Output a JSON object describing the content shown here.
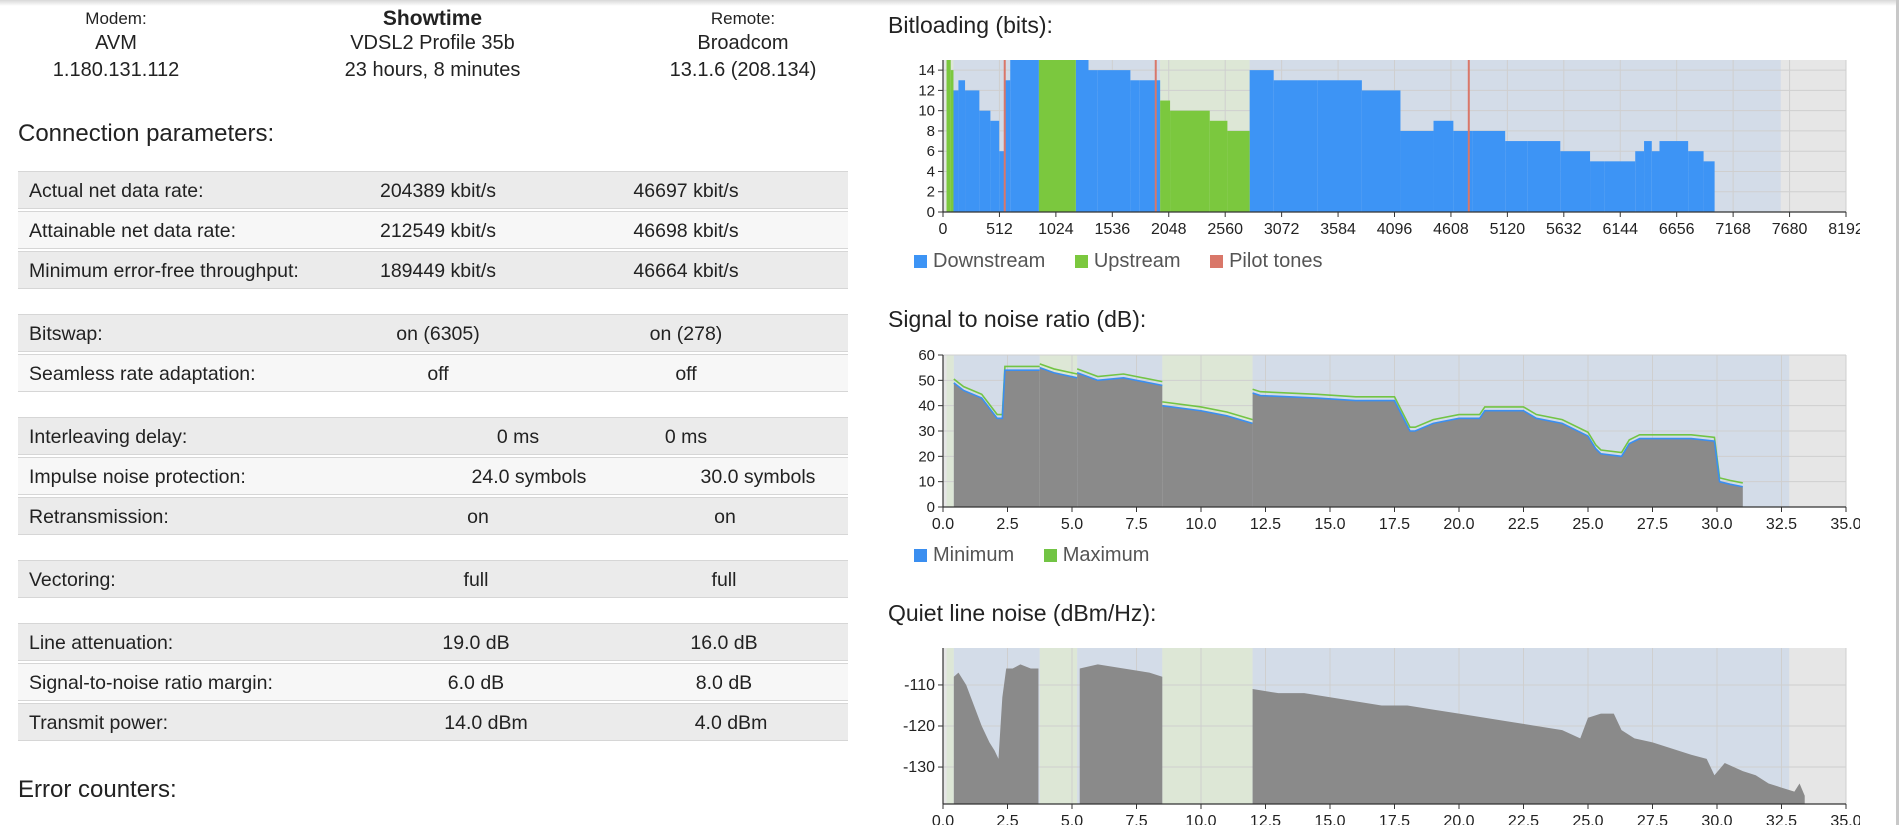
{
  "header": {
    "modem_label": "Modem:",
    "modem_vendor": "AVM",
    "modem_version": "1.180.131.112",
    "state": "Showtime",
    "profile": "VDSL2 Profile 35b",
    "uptime": "23 hours, 8 minutes",
    "remote_label": "Remote:",
    "remote_vendor": "Broadcom",
    "remote_version": "13.1.6 (208.134)"
  },
  "sections": {
    "connection": "Connection parameters:",
    "errors": "Error counters:"
  },
  "params": [
    {
      "name": "Actual net data rate:",
      "ds": "204389 kbit/s",
      "us": "46697 kbit/s"
    },
    {
      "name": "Attainable net data rate:",
      "ds": "212549 kbit/s",
      "us": "46698 kbit/s"
    },
    {
      "name": "Minimum error-free throughput:",
      "ds": "189449 kbit/s",
      "us": "46664 kbit/s"
    },
    {
      "name": "Bitswap:",
      "ds": "on (6305)",
      "us": "on (278)"
    },
    {
      "name": "Seamless rate adaptation:",
      "ds": "off",
      "us": "off"
    },
    {
      "name": "Interleaving delay:",
      "ds": "0 ms",
      "us": "0 ms"
    },
    {
      "name": "Impulse noise protection:",
      "ds": "24.0 symbols",
      "us": "30.0 symbols"
    },
    {
      "name": "Retransmission:",
      "ds": "on",
      "us": "on"
    },
    {
      "name": "Vectoring:",
      "ds": "full",
      "us": "full"
    },
    {
      "name": "Line attenuation:",
      "ds": "19.0 dB",
      "us": "16.0 dB"
    },
    {
      "name": "Signal-to-noise ratio margin:",
      "ds": "6.0 dB",
      "us": "8.0 dB"
    },
    {
      "name": "Transmit power:",
      "ds": "14.0 dBm",
      "us": "4.0 dBm"
    }
  ],
  "colors": {
    "downstream": "#3d94f5",
    "upstream": "#7bc83e",
    "pilot": "#d97769",
    "snr_min": "#3a8ef0",
    "snr_max": "#72c444",
    "noise": "#8a8a8a",
    "band_ds": "#d3dce8",
    "band_us": "#dde7d6",
    "plot_bg": "#e6e6e6"
  },
  "chart_data": [
    {
      "type": "bar",
      "title": "Bitloading (bits):",
      "x_unit": "tone",
      "xlim": [
        0,
        8192
      ],
      "ylim": [
        0,
        15
      ],
      "xticks": [
        0,
        512,
        1024,
        1536,
        2048,
        2560,
        3072,
        3584,
        4096,
        4608,
        5120,
        5632,
        6144,
        6656,
        7168,
        7680,
        8192
      ],
      "yticks": [
        0,
        2,
        4,
        6,
        8,
        10,
        12,
        14
      ],
      "grid": true,
      "legend_position": "bottom-left",
      "legend": [
        "Downstream",
        "Upstream",
        "Pilot tones"
      ],
      "bands": [
        {
          "kind": "us",
          "from": 32,
          "to": 95
        },
        {
          "kind": "ds",
          "from": 95,
          "to": 870
        },
        {
          "kind": "us",
          "from": 870,
          "to": 1205
        },
        {
          "kind": "ds",
          "from": 1205,
          "to": 1970
        },
        {
          "kind": "us",
          "from": 1970,
          "to": 2782
        },
        {
          "kind": "ds",
          "from": 2782,
          "to": 7600
        }
      ],
      "downstream_steps": [
        [
          95,
          140,
          12
        ],
        [
          140,
          200,
          13
        ],
        [
          200,
          330,
          12
        ],
        [
          330,
          430,
          10
        ],
        [
          430,
          510,
          9
        ],
        [
          510,
          560,
          6
        ],
        [
          560,
          610,
          13
        ],
        [
          610,
          870,
          15
        ],
        [
          1205,
          1320,
          15
        ],
        [
          1320,
          1400,
          14
        ],
        [
          1400,
          1700,
          14
        ],
        [
          1700,
          1780,
          13
        ],
        [
          1780,
          1970,
          13
        ],
        [
          2782,
          3000,
          14
        ],
        [
          3000,
          3400,
          13
        ],
        [
          3400,
          3800,
          13
        ],
        [
          3800,
          4150,
          12
        ],
        [
          4150,
          4450,
          8
        ],
        [
          4450,
          4630,
          9
        ],
        [
          4630,
          4800,
          8
        ],
        [
          4800,
          5100,
          8
        ],
        [
          5100,
          5300,
          7
        ],
        [
          5300,
          5600,
          7
        ],
        [
          5600,
          5870,
          6
        ],
        [
          5870,
          6000,
          5
        ],
        [
          6000,
          6280,
          5
        ],
        [
          6280,
          6360,
          6
        ],
        [
          6360,
          6430,
          7
        ],
        [
          6430,
          6500,
          6
        ],
        [
          6500,
          6760,
          7
        ],
        [
          6760,
          6900,
          6
        ],
        [
          6900,
          7000,
          5
        ]
      ],
      "upstream_steps": [
        [
          32,
          70,
          15
        ],
        [
          70,
          95,
          14
        ],
        [
          870,
          1205,
          15
        ],
        [
          1970,
          2060,
          11
        ],
        [
          2060,
          2420,
          10
        ],
        [
          2420,
          2580,
          9
        ],
        [
          2580,
          2782,
          8
        ]
      ],
      "pilot_tones": [
        560,
        1930,
        4770
      ]
    },
    {
      "type": "line",
      "title": "Signal to noise ratio (dB):",
      "x_unit": "MHz",
      "xlim": [
        0,
        35
      ],
      "ylim": [
        0,
        60
      ],
      "xticks": [
        0.0,
        2.5,
        5.0,
        7.5,
        10.0,
        12.5,
        15.0,
        17.5,
        20.0,
        22.5,
        25.0,
        27.5,
        30.0,
        32.5,
        35.0
      ],
      "yticks": [
        0,
        10,
        20,
        30,
        40,
        50,
        60
      ],
      "grid": true,
      "legend_position": "bottom-left",
      "legend": [
        "Minimum",
        "Maximum"
      ],
      "bands": [
        {
          "kind": "us",
          "from": 0.14,
          "to": 0.42
        },
        {
          "kind": "ds",
          "from": 0.42,
          "to": 3.75
        },
        {
          "kind": "us",
          "from": 3.75,
          "to": 5.2
        },
        {
          "kind": "ds",
          "from": 5.2,
          "to": 8.5
        },
        {
          "kind": "us",
          "from": 8.5,
          "to": 12.0
        },
        {
          "kind": "ds",
          "from": 12.0,
          "to": 32.8
        }
      ],
      "segments": [
        {
          "x": [
            0.42,
            0.8,
            1.5,
            2.1,
            2.3,
            2.4,
            3.0,
            3.75
          ],
          "y": [
            49,
            46,
            43,
            35,
            35,
            54,
            54,
            54
          ]
        },
        {
          "x": [
            3.75,
            4.3,
            5.2
          ],
          "y": [
            55,
            53,
            51
          ]
        },
        {
          "x": [
            5.2,
            6.0,
            7.0,
            8.5
          ],
          "y": [
            53,
            50,
            51,
            48
          ]
        },
        {
          "x": [
            8.5,
            10.0,
            11.0,
            12.0
          ],
          "y": [
            40,
            38,
            36,
            33
          ]
        },
        {
          "x": [
            12.0,
            12.3,
            14.5,
            16.0,
            17.0,
            17.5,
            17.7,
            18.1,
            18.3,
            19.0,
            20.0,
            20.8,
            21.0,
            22.5,
            23.0,
            24.0,
            25.0,
            25.3,
            25.5,
            26.3,
            26.6,
            27.0,
            28.0,
            29.0,
            29.9,
            30.1,
            30.5,
            31.0
          ],
          "y": [
            45,
            44,
            43,
            42,
            42,
            42,
            38,
            30,
            30,
            33,
            35,
            35,
            38,
            38,
            35,
            33,
            28,
            23,
            21,
            20,
            25,
            27,
            27,
            27,
            26,
            10,
            9,
            8
          ]
        }
      ],
      "max_offset": 1.5
    },
    {
      "type": "area",
      "title": "Quiet line noise (dBm/Hz):",
      "x_unit": "MHz",
      "xlim": [
        0,
        35
      ],
      "ylim": [
        -139,
        -101
      ],
      "xticks": [
        0.0,
        2.5,
        5.0,
        7.5,
        10.0,
        12.5,
        15.0,
        17.5,
        20.0,
        22.5,
        25.0,
        27.5,
        30.0,
        32.5,
        35.0
      ],
      "yticks": [
        -130,
        -120,
        -110
      ],
      "grid": true,
      "bands": [
        {
          "kind": "us",
          "from": 0.14,
          "to": 0.42
        },
        {
          "kind": "ds",
          "from": 0.42,
          "to": 3.75
        },
        {
          "kind": "us",
          "from": 3.75,
          "to": 5.2
        },
        {
          "kind": "ds",
          "from": 5.2,
          "to": 8.5
        },
        {
          "kind": "us",
          "from": 8.5,
          "to": 12.0
        },
        {
          "kind": "ds",
          "from": 12.0,
          "to": 32.8
        }
      ],
      "segments": [
        {
          "x": [
            0.42,
            0.6,
            0.9,
            1.2,
            1.5,
            1.8,
            2.0,
            2.15,
            2.3,
            2.45,
            2.7,
            3.0,
            3.4,
            3.7
          ],
          "y": [
            -108,
            -107,
            -110,
            -115,
            -120,
            -124,
            -126,
            -128,
            -113,
            -106,
            -106,
            -105,
            -106,
            -106
          ]
        },
        {
          "x": [
            5.3,
            6.0,
            7.0,
            8.0,
            8.5
          ],
          "y": [
            -106,
            -105,
            -106,
            -107,
            -108
          ]
        },
        {
          "x": [
            12.0,
            13.0,
            14.0,
            15.0,
            16.0,
            17.0,
            18.0,
            19.0,
            20.0,
            21.0,
            22.0,
            23.0,
            24.0,
            24.7,
            25.0,
            25.5,
            26.0,
            26.3,
            26.8,
            27.5,
            28.5,
            29.0,
            29.6,
            29.9,
            30.3,
            31.0,
            31.5,
            32.0,
            32.5,
            33.0,
            33.2,
            33.4
          ],
          "y": [
            -111,
            -112,
            -112,
            -113,
            -114,
            -115,
            -115,
            -116,
            -117,
            -118,
            -119,
            -120,
            -121,
            -123,
            -118,
            -117,
            -117,
            -121,
            -123,
            -124,
            -126,
            -127,
            -128,
            -132,
            -129,
            -131,
            -132,
            -134,
            -135,
            -136,
            -134,
            -137
          ]
        }
      ]
    }
  ]
}
